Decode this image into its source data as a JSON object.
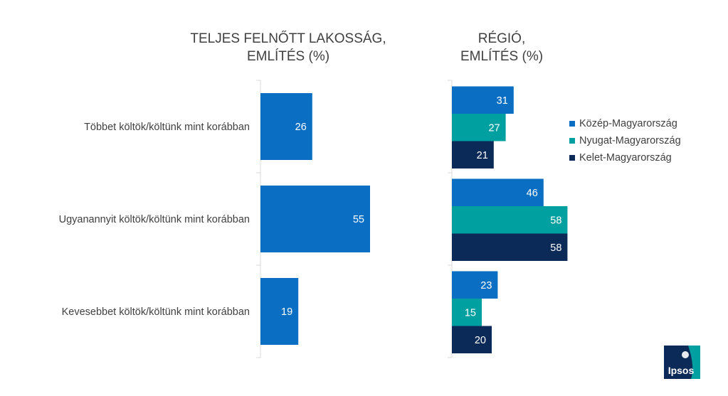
{
  "headings": {
    "left_line1": "TELJES FELNŐTT LAKOSSÁG,",
    "left_line2": "EMLÍTÉS (%)",
    "right_line1": "RÉGIÓ,",
    "right_line2": "EMLÍTÉS (%)"
  },
  "colors": {
    "total": "#0a6ec2",
    "kozep": "#0a6ec2",
    "nyugat": "#00a0a0",
    "kelet": "#0c2a57",
    "axis": "#d9d9d9"
  },
  "chart_data": [
    {
      "type": "bar",
      "orientation": "horizontal",
      "title": "TELJES FELNŐTT LAKOSSÁG, EMLÍTÉS (%)",
      "categories": [
        "Többet költök/költünk mint korábban",
        "Ugyanannyit költök/költünk mint korábban",
        "Kevesebbet költök/költünk mint korábban"
      ],
      "values": [
        26,
        55,
        19
      ],
      "xlim": [
        0,
        100
      ]
    },
    {
      "type": "bar",
      "orientation": "horizontal",
      "title": "RÉGIÓ, EMLÍTÉS (%)",
      "categories": [
        "Többet költök/költünk mint korábban",
        "Ugyanannyit költök/költünk mint korábban",
        "Kevesebbet költök/költünk mint korábban"
      ],
      "series": [
        {
          "name": "Közép-Magyarország",
          "values": [
            31,
            46,
            23
          ]
        },
        {
          "name": "Nyugat-Magyarország",
          "values": [
            27,
            58,
            15
          ]
        },
        {
          "name": "Kelet-Magyarország",
          "values": [
            21,
            58,
            20
          ]
        }
      ],
      "legend": "right",
      "xlim": [
        0,
        100
      ]
    }
  ],
  "logo": {
    "text": "Ipsos"
  }
}
